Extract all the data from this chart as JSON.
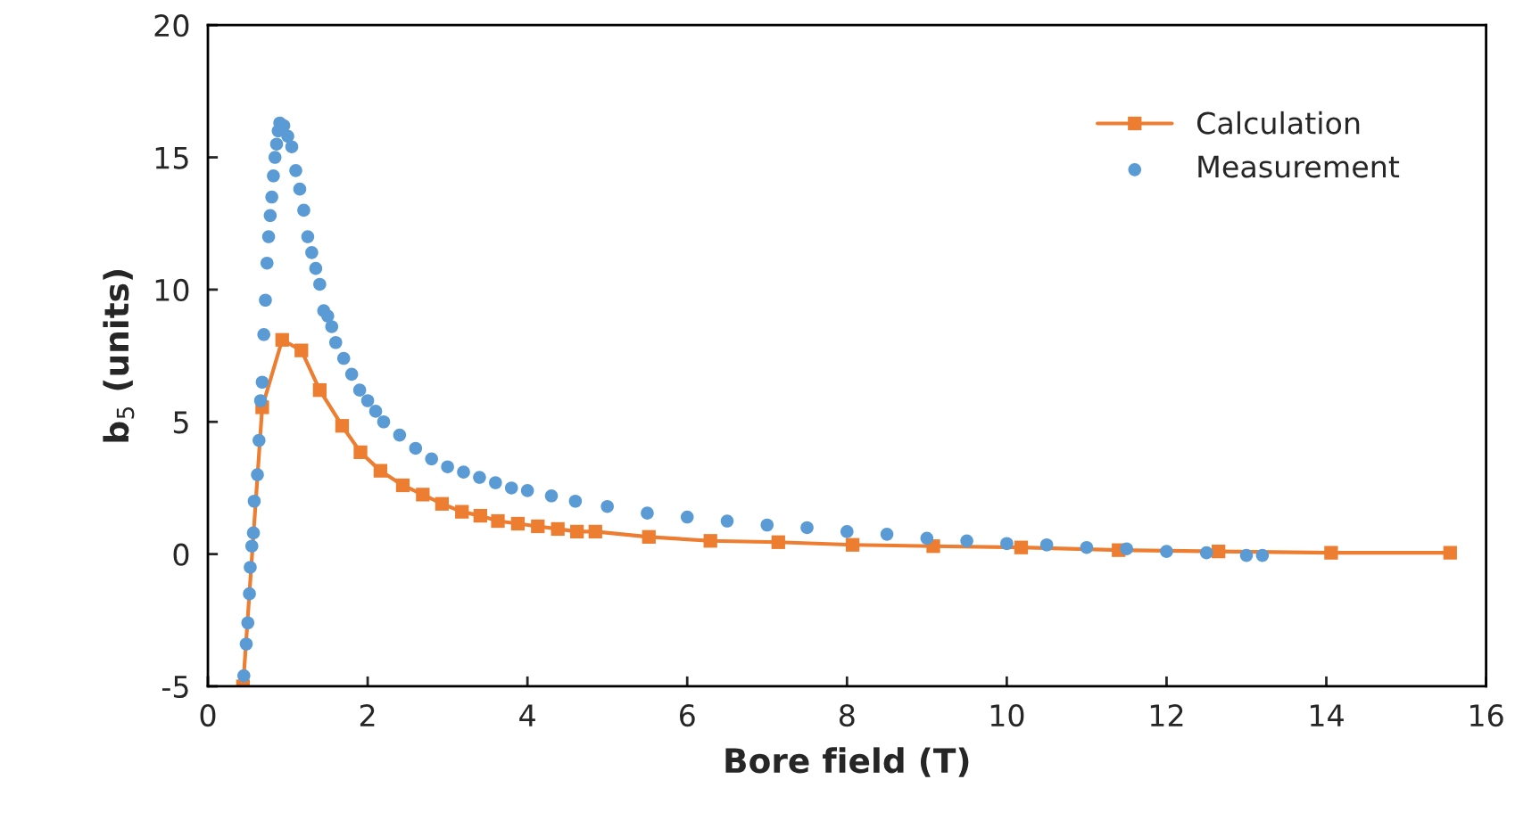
{
  "chart_data": {
    "type": "line",
    "xlabel": "Bore field (T)",
    "ylabel": "b$_{5}$ (units)",
    "xlim": [
      0,
      16
    ],
    "xticks": [
      0,
      2,
      4,
      6,
      8,
      10,
      12,
      14,
      16
    ],
    "ylim": [
      -5,
      20
    ],
    "yticks": [
      -5,
      0,
      5,
      10,
      15,
      20
    ],
    "grid": false,
    "legend": "top right",
    "series": [
      {
        "name": "Calculation",
        "color": "#ed7d31",
        "marker": "square",
        "line_style": "solid",
        "x": [
          0.44,
          0.68,
          0.93,
          1.17,
          1.4,
          1.68,
          1.91,
          2.16,
          2.44,
          2.69,
          2.93,
          3.18,
          3.41,
          3.63,
          3.88,
          4.13,
          4.38,
          4.62,
          4.85,
          5.52,
          6.29,
          7.14,
          8.07,
          9.08,
          10.18,
          11.4,
          12.65,
          14.06,
          15.55
        ],
        "values": [
          -5,
          5.55,
          8.1,
          7.7,
          6.2,
          4.85,
          3.85,
          3.15,
          2.6,
          2.25,
          1.9,
          1.6,
          1.45,
          1.25,
          1.15,
          1.05,
          0.95,
          0.85,
          0.85,
          0.65,
          0.5,
          0.45,
          0.35,
          0.3,
          0.25,
          0.15,
          0.1,
          0.05,
          0.05
        ]
      },
      {
        "name": "Measurement",
        "type": "scatter",
        "color": "#5b9bd5",
        "marker": "circle",
        "x": [
          0.45,
          0.48,
          0.5,
          0.52,
          0.53,
          0.55,
          0.57,
          0.58,
          0.62,
          0.64,
          0.66,
          0.68,
          0.7,
          0.72,
          0.74,
          0.76,
          0.78,
          0.8,
          0.82,
          0.84,
          0.86,
          0.88,
          0.9,
          0.95,
          1.0,
          1.05,
          1.1,
          1.15,
          1.2,
          1.25,
          1.3,
          1.35,
          1.4,
          1.45,
          1.5,
          1.55,
          1.6,
          1.7,
          1.8,
          1.9,
          2.0,
          2.1,
          2.2,
          2.4,
          2.6,
          2.8,
          3.0,
          3.2,
          3.4,
          3.6,
          3.8,
          4.0,
          4.3,
          4.6,
          5.0,
          5.5,
          6.0,
          6.5,
          7.0,
          7.5,
          8.0,
          8.5,
          9.0,
          9.5,
          10.0,
          10.5,
          11.0,
          11.5,
          12.0,
          12.5,
          13.0,
          13.2
        ],
        "values": [
          -4.6,
          -3.4,
          -2.6,
          -1.5,
          -0.5,
          0.3,
          0.8,
          2.0,
          3.0,
          4.3,
          5.8,
          6.5,
          8.3,
          9.6,
          11.0,
          12.0,
          12.8,
          13.5,
          14.3,
          15.0,
          15.5,
          16.0,
          16.3,
          16.2,
          15.8,
          15.4,
          14.5,
          13.8,
          13.0,
          12.0,
          11.4,
          10.8,
          10.2,
          9.2,
          9.0,
          8.6,
          8.0,
          7.4,
          6.8,
          6.2,
          5.8,
          5.4,
          5.0,
          4.5,
          4.0,
          3.6,
          3.3,
          3.1,
          2.9,
          2.7,
          2.5,
          2.4,
          2.2,
          2.0,
          1.8,
          1.55,
          1.4,
          1.25,
          1.1,
          1.0,
          0.85,
          0.75,
          0.6,
          0.5,
          0.4,
          0.35,
          0.25,
          0.2,
          0.1,
          0.05,
          -0.05,
          -0.05
        ]
      }
    ]
  }
}
